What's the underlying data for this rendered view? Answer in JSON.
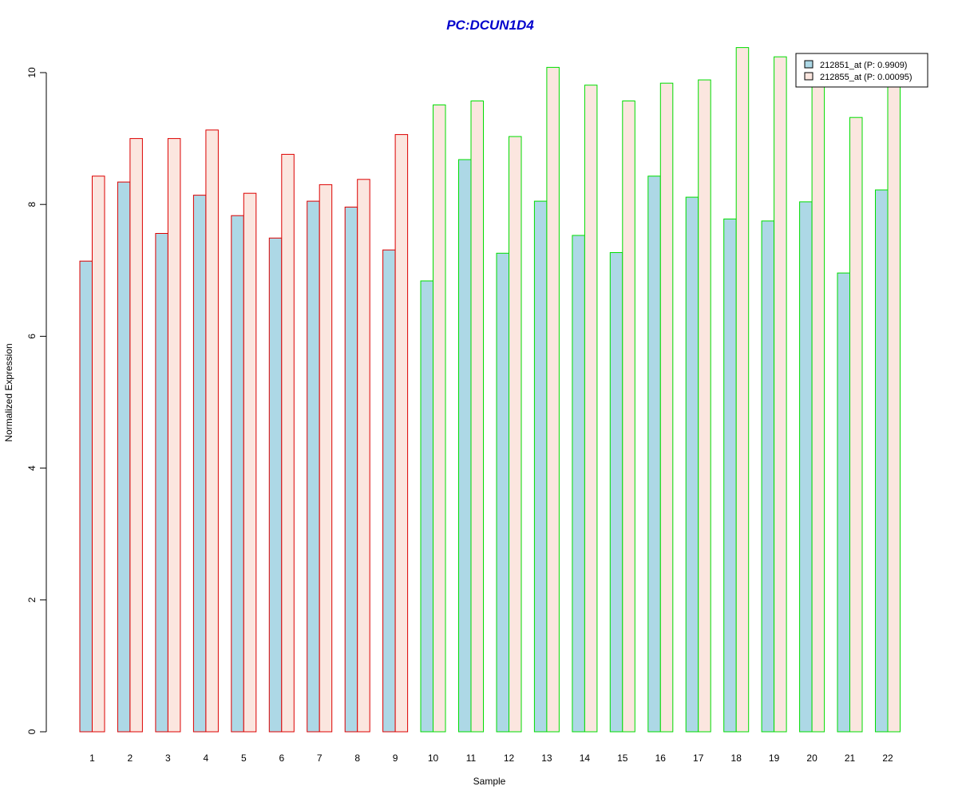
{
  "chart_data": {
    "type": "bar",
    "title": "PC:DCUN1D4",
    "xlabel": "Sample",
    "ylabel": "Normalized Expression",
    "ylim": [
      0,
      10.5
    ],
    "yticks": [
      "0",
      "2",
      "4",
      "6",
      "8",
      "10"
    ],
    "categories": [
      "1",
      "2",
      "3",
      "4",
      "5",
      "6",
      "7",
      "8",
      "9",
      "10",
      "11",
      "12",
      "13",
      "14",
      "15",
      "16",
      "17",
      "18",
      "19",
      "20",
      "21",
      "22"
    ],
    "group_border_colors": [
      "#dd0000",
      "#dd0000",
      "#dd0000",
      "#dd0000",
      "#dd0000",
      "#dd0000",
      "#dd0000",
      "#dd0000",
      "#dd0000",
      "#00dd00",
      "#00dd00",
      "#00dd00",
      "#00dd00",
      "#00dd00",
      "#00dd00",
      "#00dd00",
      "#00dd00",
      "#00dd00",
      "#00dd00",
      "#00dd00",
      "#00dd00",
      "#00dd00"
    ],
    "series": [
      {
        "name": "212851_at (P: 0.9909)",
        "fill": "#add8e6",
        "values": [
          7.14,
          8.34,
          7.56,
          8.14,
          7.83,
          7.49,
          8.05,
          7.96,
          7.31,
          6.84,
          8.68,
          7.26,
          8.05,
          7.53,
          7.27,
          8.43,
          8.11,
          7.78,
          7.75,
          8.04,
          6.96,
          8.22
        ]
      },
      {
        "name": "212855_at (P: 0.00095)",
        "fill": "#fbe6df",
        "values": [
          8.43,
          9.0,
          9.0,
          9.13,
          8.17,
          8.76,
          8.3,
          8.38,
          9.06,
          9.51,
          9.57,
          9.03,
          10.08,
          9.81,
          9.57,
          9.84,
          9.89,
          10.38,
          10.24,
          9.85,
          9.32,
          9.8
        ]
      }
    ],
    "title_color": "#0000cc",
    "legend_position": "top-right"
  }
}
